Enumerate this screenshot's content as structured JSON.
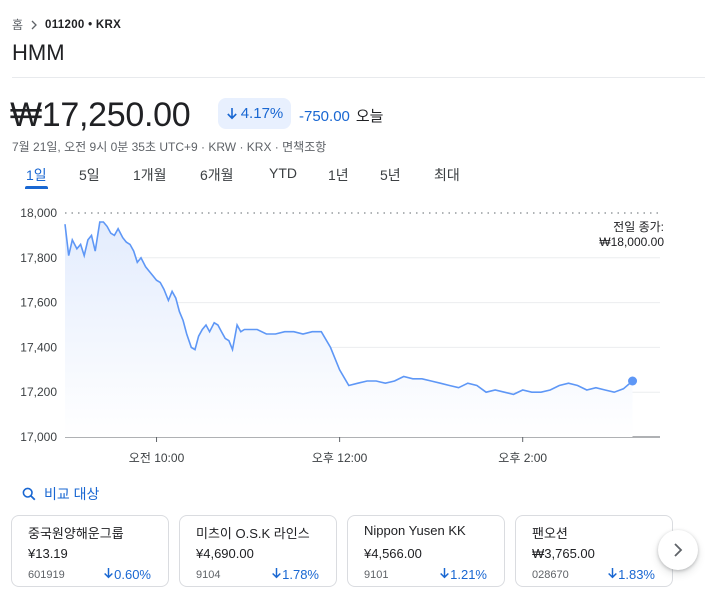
{
  "breadcrumb": {
    "home": "홈",
    "symbol": "011200 • KRX"
  },
  "title": "HMM",
  "quote": {
    "price": "₩17,250.00",
    "change_pct": "4.17%",
    "change_abs": "-750.00",
    "period": "오늘",
    "meta": "7월 21일, 오전 9시 0분 35초 UTC+9 · KRW · KRX · 면책조항",
    "trend_color": "#1967d2"
  },
  "tabs": [
    "1일",
    "5일",
    "1개월",
    "6개월",
    "YTD",
    "1년",
    "5년",
    "최대"
  ],
  "active_tab": "1일",
  "chart_data": {
    "type": "area",
    "ylim": [
      17000,
      18000
    ],
    "y_ticks": [
      "18,000",
      "17,800",
      "17,600",
      "17,400",
      "17,200",
      "17,000"
    ],
    "x_ticks": [
      "오전 10:00",
      "오후 12:00",
      "오후 2:00"
    ],
    "x_tick_hours": [
      10,
      12,
      14
    ],
    "x_range_hours": [
      9.0,
      15.5
    ],
    "previous_close": 18000,
    "previous_close_label": "전일 종가:",
    "previous_close_value": "₩18,000.00",
    "line_color": "#5e97f6",
    "grid": true,
    "series": [
      {
        "x": [
          9.0,
          9.04,
          9.08,
          9.13,
          9.17,
          9.21,
          9.25,
          9.29,
          9.33,
          9.38,
          9.42,
          9.46,
          9.5,
          9.54,
          9.58,
          9.63,
          9.67,
          9.71,
          9.75,
          9.79,
          9.83,
          9.88,
          9.92,
          9.96,
          10.0,
          10.04,
          10.08,
          10.13,
          10.17,
          10.21,
          10.25,
          10.29,
          10.33,
          10.38,
          10.42,
          10.46,
          10.5,
          10.54,
          10.58,
          10.63,
          10.67,
          10.71,
          10.75,
          10.79,
          10.83,
          10.88,
          10.92,
          10.96,
          11.0,
          11.1,
          11.2,
          11.3,
          11.4,
          11.5,
          11.6,
          11.7,
          11.8,
          11.9,
          12.0,
          12.1,
          12.2,
          12.3,
          12.4,
          12.5,
          12.6,
          12.7,
          12.8,
          12.9,
          13.0,
          13.1,
          13.2,
          13.3,
          13.4,
          13.5,
          13.6,
          13.7,
          13.8,
          13.9,
          14.0,
          14.1,
          14.2,
          14.3,
          14.4,
          14.5,
          14.6,
          14.7,
          14.8,
          14.9,
          15.0,
          15.1,
          15.2
        ],
        "y": [
          17950,
          17810,
          17880,
          17840,
          17860,
          17810,
          17880,
          17900,
          17830,
          17960,
          17960,
          17940,
          17910,
          17900,
          17930,
          17890,
          17870,
          17860,
          17830,
          17780,
          17800,
          17760,
          17740,
          17720,
          17700,
          17690,
          17660,
          17610,
          17650,
          17620,
          17560,
          17520,
          17460,
          17400,
          17390,
          17450,
          17480,
          17500,
          17470,
          17510,
          17500,
          17470,
          17440,
          17430,
          17390,
          17500,
          17470,
          17480,
          17480,
          17480,
          17460,
          17460,
          17470,
          17470,
          17460,
          17470,
          17470,
          17400,
          17300,
          17230,
          17240,
          17250,
          17250,
          17240,
          17250,
          17270,
          17260,
          17260,
          17250,
          17240,
          17230,
          17220,
          17240,
          17230,
          17200,
          17210,
          17200,
          17190,
          17210,
          17200,
          17200,
          17210,
          17230,
          17240,
          17230,
          17210,
          17220,
          17210,
          17200,
          17215,
          17250
        ]
      }
    ],
    "last_point": {
      "x": 15.2,
      "y": 17250
    }
  },
  "compare": {
    "label": "비교 대상",
    "cards": [
      {
        "name": "중국원양해운그룹",
        "price": "¥13.19",
        "ticker": "601919",
        "change": "0.60%"
      },
      {
        "name": "미츠이 O.S.K 라인스",
        "price": "¥4,690.00",
        "ticker": "9104",
        "change": "1.78%"
      },
      {
        "name": "Nippon Yusen KK",
        "price": "¥4,566.00",
        "ticker": "9101",
        "change": "1.21%"
      },
      {
        "name": "팬오션",
        "price": "₩3,765.00",
        "ticker": "028670",
        "change": "1.83%"
      }
    ]
  }
}
